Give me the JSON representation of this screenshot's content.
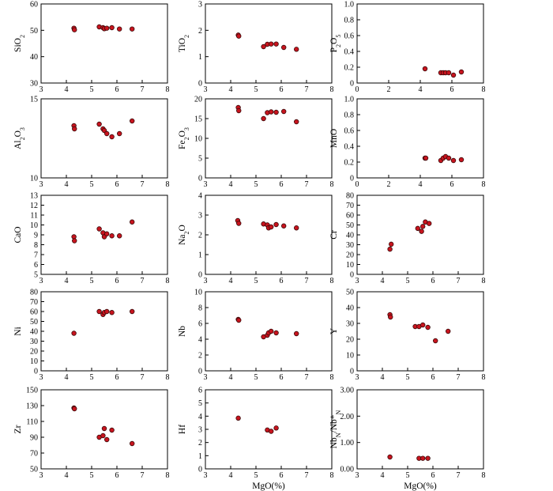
{
  "figure": {
    "xlabel_bottom": "MgO(%)"
  },
  "colors": {
    "point_fill": "#c8141e",
    "point_stroke": "#3a0a0a",
    "frame": "#000000",
    "background": "#ffffff"
  },
  "chart_data": [
    {
      "type": "scatter",
      "ylabel": "SiO2",
      "ylabel_parts": [
        [
          "SiO",
          ""
        ],
        [
          "2",
          "sub"
        ]
      ],
      "xlim": [
        3,
        8
      ],
      "xticks": [
        3,
        4,
        5,
        6,
        7,
        8
      ],
      "ylim": [
        30,
        60
      ],
      "yticks": [
        30,
        40,
        50,
        60
      ],
      "x": [
        4.3,
        4.32,
        5.3,
        5.45,
        5.5,
        5.6,
        5.8,
        6.1,
        6.6
      ],
      "y": [
        50.8,
        50.2,
        51.3,
        51.0,
        50.6,
        50.8,
        51.0,
        50.5,
        50.5
      ]
    },
    {
      "type": "scatter",
      "ylabel": "TiO2",
      "ylabel_parts": [
        [
          "TiO",
          ""
        ],
        [
          "2",
          "sub"
        ]
      ],
      "xlim": [
        3,
        8
      ],
      "xticks": [
        3,
        4,
        5,
        6,
        7,
        8
      ],
      "ylim": [
        0,
        3
      ],
      "yticks": [
        0,
        1,
        2,
        3
      ],
      "x": [
        4.3,
        4.32,
        5.3,
        5.45,
        5.6,
        5.8,
        6.1,
        6.6
      ],
      "y": [
        1.82,
        1.78,
        1.38,
        1.47,
        1.48,
        1.48,
        1.35,
        1.28
      ]
    },
    {
      "type": "scatter",
      "ylabel": "P2O5",
      "ylabel_parts": [
        [
          "P",
          ""
        ],
        [
          "2",
          "sub"
        ],
        [
          "O",
          ""
        ],
        [
          "5",
          "sub"
        ]
      ],
      "xlim": [
        0,
        8
      ],
      "xticks": [
        0,
        2,
        4,
        6,
        8
      ],
      "ylim": [
        0,
        1.0
      ],
      "yticks": [
        "0",
        "0.2",
        "0.4",
        "0.6",
        "0.8",
        "1.0"
      ],
      "x": [
        4.3,
        5.3,
        5.45,
        5.6,
        5.8,
        6.1,
        6.6
      ],
      "y": [
        0.18,
        0.13,
        0.13,
        0.13,
        0.13,
        0.1,
        0.14
      ]
    },
    {
      "type": "scatter",
      "ylabel": "Al2O3",
      "ylabel_parts": [
        [
          "Al",
          ""
        ],
        [
          "2",
          "sub"
        ],
        [
          "O",
          ""
        ],
        [
          "3",
          "sub"
        ]
      ],
      "xlim": [
        3,
        8
      ],
      "xticks": [
        3,
        4,
        5,
        6,
        7,
        8
      ],
      "ylim": [
        10,
        15
      ],
      "yticks": [
        10,
        15
      ],
      "x": [
        4.3,
        4.32,
        5.3,
        5.45,
        5.5,
        5.6,
        5.8,
        6.1,
        6.6
      ],
      "y": [
        13.3,
        13.1,
        13.4,
        13.1,
        13.0,
        12.8,
        12.6,
        12.8,
        13.6
      ]
    },
    {
      "type": "scatter",
      "ylabel": "Fe2O3",
      "ylabel_parts": [
        [
          "Fe",
          ""
        ],
        [
          "2",
          "sub"
        ],
        [
          "O",
          ""
        ],
        [
          "3",
          "sub"
        ]
      ],
      "xlim": [
        3,
        8
      ],
      "xticks": [
        3,
        4,
        5,
        6,
        7,
        8
      ],
      "ylim": [
        0,
        20
      ],
      "yticks": [
        0,
        5,
        10,
        15,
        20
      ],
      "x": [
        4.3,
        4.32,
        5.3,
        5.45,
        5.6,
        5.8,
        6.1,
        6.6
      ],
      "y": [
        17.8,
        17.0,
        15.0,
        16.5,
        16.7,
        16.6,
        16.8,
        14.2
      ]
    },
    {
      "type": "scatter",
      "ylabel": "MnO",
      "ylabel_parts": [
        [
          "MnO",
          ""
        ]
      ],
      "xlim": [
        0,
        8
      ],
      "xticks": [
        0,
        2,
        4,
        6,
        8
      ],
      "ylim": [
        0,
        1.0
      ],
      "yticks": [
        "0",
        "0.2",
        "0.4",
        "0.6",
        "0.8",
        "1.0"
      ],
      "x": [
        4.3,
        4.35,
        5.3,
        5.45,
        5.6,
        5.8,
        6.1,
        6.6
      ],
      "y": [
        0.25,
        0.25,
        0.22,
        0.25,
        0.27,
        0.25,
        0.22,
        0.23
      ]
    },
    {
      "type": "scatter",
      "ylabel": "CaO",
      "ylabel_parts": [
        [
          "CaO",
          ""
        ]
      ],
      "xlim": [
        3,
        8
      ],
      "xticks": [
        3,
        4,
        5,
        6,
        7,
        8
      ],
      "ylim": [
        5,
        13
      ],
      "yticks": [
        5,
        6,
        7,
        8,
        9,
        10,
        11,
        12,
        13
      ],
      "x": [
        4.3,
        4.32,
        5.3,
        5.45,
        5.5,
        5.6,
        5.8,
        6.1,
        6.6
      ],
      "y": [
        8.8,
        8.4,
        9.6,
        9.2,
        8.8,
        9.1,
        8.9,
        8.9,
        10.3
      ]
    },
    {
      "type": "scatter",
      "ylabel": "Na2O",
      "ylabel_parts": [
        [
          "Na",
          ""
        ],
        [
          "2",
          "sub"
        ],
        [
          "O",
          ""
        ]
      ],
      "xlim": [
        3,
        8
      ],
      "xticks": [
        3,
        4,
        5,
        6,
        7,
        8
      ],
      "ylim": [
        0,
        4
      ],
      "yticks": [
        0,
        1,
        2,
        3,
        4
      ],
      "x": [
        4.28,
        4.32,
        5.3,
        5.45,
        5.5,
        5.6,
        5.8,
        6.1,
        6.6
      ],
      "y": [
        2.72,
        2.58,
        2.55,
        2.5,
        2.35,
        2.4,
        2.52,
        2.45,
        2.35
      ]
    },
    {
      "type": "scatter",
      "ylabel": "Cr",
      "ylabel_parts": [
        [
          "Cr",
          ""
        ]
      ],
      "xlim": [
        3,
        8
      ],
      "xticks": [
        3,
        4,
        5,
        6,
        7,
        8
      ],
      "ylim": [
        0,
        80
      ],
      "yticks": [
        0,
        10,
        20,
        30,
        40,
        50,
        60,
        70,
        80
      ],
      "x": [
        4.3,
        4.35,
        5.4,
        5.55,
        5.6,
        5.7,
        5.85
      ],
      "y": [
        25.5,
        30.5,
        46.5,
        43.5,
        48.5,
        53.0,
        51.5
      ]
    },
    {
      "type": "scatter",
      "ylabel": "Ni",
      "ylabel_parts": [
        [
          "Ni",
          ""
        ]
      ],
      "xlim": [
        3,
        8
      ],
      "xticks": [
        3,
        4,
        5,
        6,
        7,
        8
      ],
      "ylim": [
        0,
        80
      ],
      "yticks": [
        0,
        10,
        20,
        30,
        40,
        50,
        60,
        70,
        80
      ],
      "x": [
        4.3,
        5.3,
        5.45,
        5.5,
        5.6,
        5.8,
        6.6
      ],
      "y": [
        38,
        60,
        57,
        59,
        60,
        59,
        60
      ]
    },
    {
      "type": "scatter",
      "ylabel": "Nb",
      "ylabel_parts": [
        [
          "Nb",
          ""
        ]
      ],
      "xlim": [
        3,
        8
      ],
      "xticks": [
        3,
        4,
        5,
        6,
        7,
        8
      ],
      "ylim": [
        0,
        10
      ],
      "yticks": [
        0,
        2,
        4,
        6,
        8,
        10
      ],
      "x": [
        4.3,
        4.32,
        5.3,
        5.45,
        5.5,
        5.6,
        5.8,
        6.6
      ],
      "y": [
        6.5,
        6.4,
        4.3,
        4.5,
        4.8,
        5.0,
        4.8,
        4.7
      ]
    },
    {
      "type": "scatter",
      "ylabel": "Y",
      "ylabel_parts": [
        [
          "Y",
          ""
        ]
      ],
      "xlim": [
        3,
        8
      ],
      "xticks": [
        3,
        4,
        5,
        6,
        7,
        8
      ],
      "ylim": [
        0,
        50
      ],
      "yticks": [
        0,
        10,
        20,
        30,
        40,
        50
      ],
      "x": [
        4.3,
        4.32,
        5.3,
        5.45,
        5.6,
        5.8,
        6.1,
        6.6
      ],
      "y": [
        35.5,
        34.0,
        28.0,
        28.0,
        29.0,
        27.5,
        19.0,
        25.0
      ]
    },
    {
      "type": "scatter",
      "ylabel": "Zr",
      "ylabel_parts": [
        [
          "Zr",
          ""
        ]
      ],
      "xlim": [
        3,
        8
      ],
      "xticks": [
        3,
        4,
        5,
        6,
        7,
        8
      ],
      "ylim": [
        50,
        150
      ],
      "yticks": [
        50,
        70,
        90,
        110,
        130,
        150
      ],
      "x": [
        4.3,
        4.32,
        5.3,
        5.45,
        5.5,
        5.6,
        5.8,
        6.6
      ],
      "y": [
        127,
        126,
        90,
        92,
        101,
        87,
        99,
        82
      ]
    },
    {
      "type": "scatter",
      "ylabel": "Hf",
      "ylabel_parts": [
        [
          "Hf",
          ""
        ]
      ],
      "xlim": [
        3,
        8
      ],
      "xticks": [
        3,
        4,
        5,
        6,
        7,
        8
      ],
      "ylim": [
        0,
        6
      ],
      "yticks": [
        0,
        1,
        2,
        3,
        4,
        5,
        6
      ],
      "x": [
        4.3,
        5.45,
        5.6,
        5.8
      ],
      "y": [
        3.85,
        2.95,
        2.85,
        3.1
      ],
      "xlabel": "MgO(%)"
    },
    {
      "type": "scatter",
      "ylabel": "NbN/Nb*N",
      "ylabel_parts": [
        [
          "Nb",
          ""
        ],
        [
          "N",
          "sub"
        ],
        [
          "/Nb*",
          ""
        ],
        [
          "N",
          "sub"
        ]
      ],
      "xlim": [
        3,
        8
      ],
      "xticks": [
        3,
        4,
        5,
        6,
        7,
        8
      ],
      "ylim": [
        0,
        3
      ],
      "yticks": [
        "0.00",
        "1.00",
        "2.00",
        "3.00"
      ],
      "x": [
        4.3,
        5.45,
        5.6,
        5.8
      ],
      "y": [
        0.45,
        0.4,
        0.4,
        0.4
      ],
      "xlabel": "MgO(%)"
    }
  ]
}
